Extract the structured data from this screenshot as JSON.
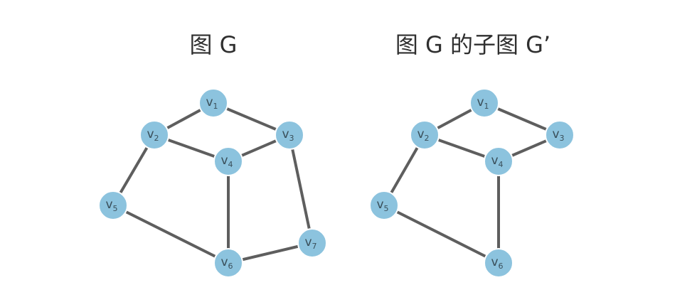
{
  "graphs": [
    {
      "title": "图 G",
      "nodes": [
        {
          "id": "v1",
          "label": "v",
          "sub": "1"
        },
        {
          "id": "v2",
          "label": "v",
          "sub": "2"
        },
        {
          "id": "v3",
          "label": "v",
          "sub": "3"
        },
        {
          "id": "v4",
          "label": "v",
          "sub": "4"
        },
        {
          "id": "v5",
          "label": "v",
          "sub": "5"
        },
        {
          "id": "v6",
          "label": "v",
          "sub": "6"
        },
        {
          "id": "v7",
          "label": "v",
          "sub": "7"
        }
      ],
      "edges": [
        [
          "v1",
          "v2"
        ],
        [
          "v1",
          "v3"
        ],
        [
          "v2",
          "v4"
        ],
        [
          "v3",
          "v4"
        ],
        [
          "v2",
          "v5"
        ],
        [
          "v3",
          "v7"
        ],
        [
          "v4",
          "v6"
        ],
        [
          "v5",
          "v6"
        ],
        [
          "v6",
          "v7"
        ]
      ]
    },
    {
      "title": "图 G 的子图 G’",
      "nodes": [
        {
          "id": "v1",
          "label": "v",
          "sub": "1"
        },
        {
          "id": "v2",
          "label": "v",
          "sub": "2"
        },
        {
          "id": "v3",
          "label": "v",
          "sub": "3"
        },
        {
          "id": "v4",
          "label": "v",
          "sub": "4"
        },
        {
          "id": "v5",
          "label": "v",
          "sub": "5"
        },
        {
          "id": "v6",
          "label": "v",
          "sub": "6"
        }
      ],
      "edges": [
        [
          "v1",
          "v2"
        ],
        [
          "v1",
          "v3"
        ],
        [
          "v2",
          "v4"
        ],
        [
          "v3",
          "v4"
        ],
        [
          "v2",
          "v5"
        ],
        [
          "v4",
          "v6"
        ],
        [
          "v5",
          "v6"
        ]
      ]
    }
  ]
}
